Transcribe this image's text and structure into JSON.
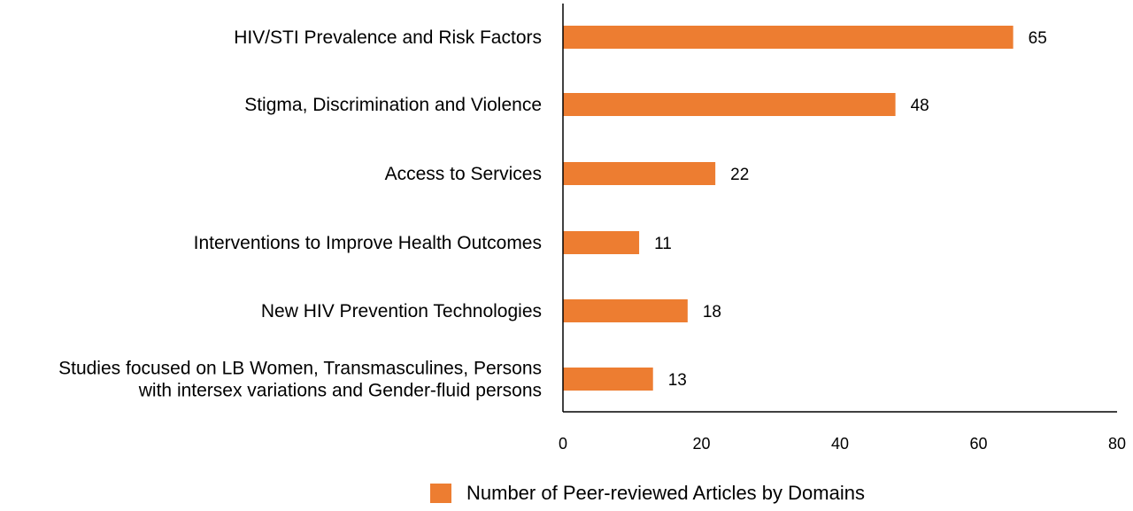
{
  "chart_data": {
    "type": "bar",
    "orientation": "horizontal",
    "categories": [
      [
        "HIV/STI Prevalence and Risk Factors"
      ],
      [
        "Stigma, Discrimination and Violence"
      ],
      [
        "Access to Services"
      ],
      [
        "Interventions to Improve Health Outcomes"
      ],
      [
        "New HIV Prevention Technologies"
      ],
      [
        "Studies focused on LB Women, Transmasculines, Persons",
        "with intersex variations and Gender-fluid persons"
      ]
    ],
    "series": [
      {
        "name": "Number of Peer-reviewed Articles by Domains",
        "values": [
          65,
          48,
          22,
          11,
          18,
          13
        ],
        "color": "#ed7d31"
      }
    ],
    "xlim": [
      0,
      80
    ],
    "xticks": [
      0,
      20,
      40,
      60,
      80
    ],
    "grid": false,
    "legend": "bottom",
    "title": "",
    "xlabel": "",
    "ylabel": ""
  }
}
